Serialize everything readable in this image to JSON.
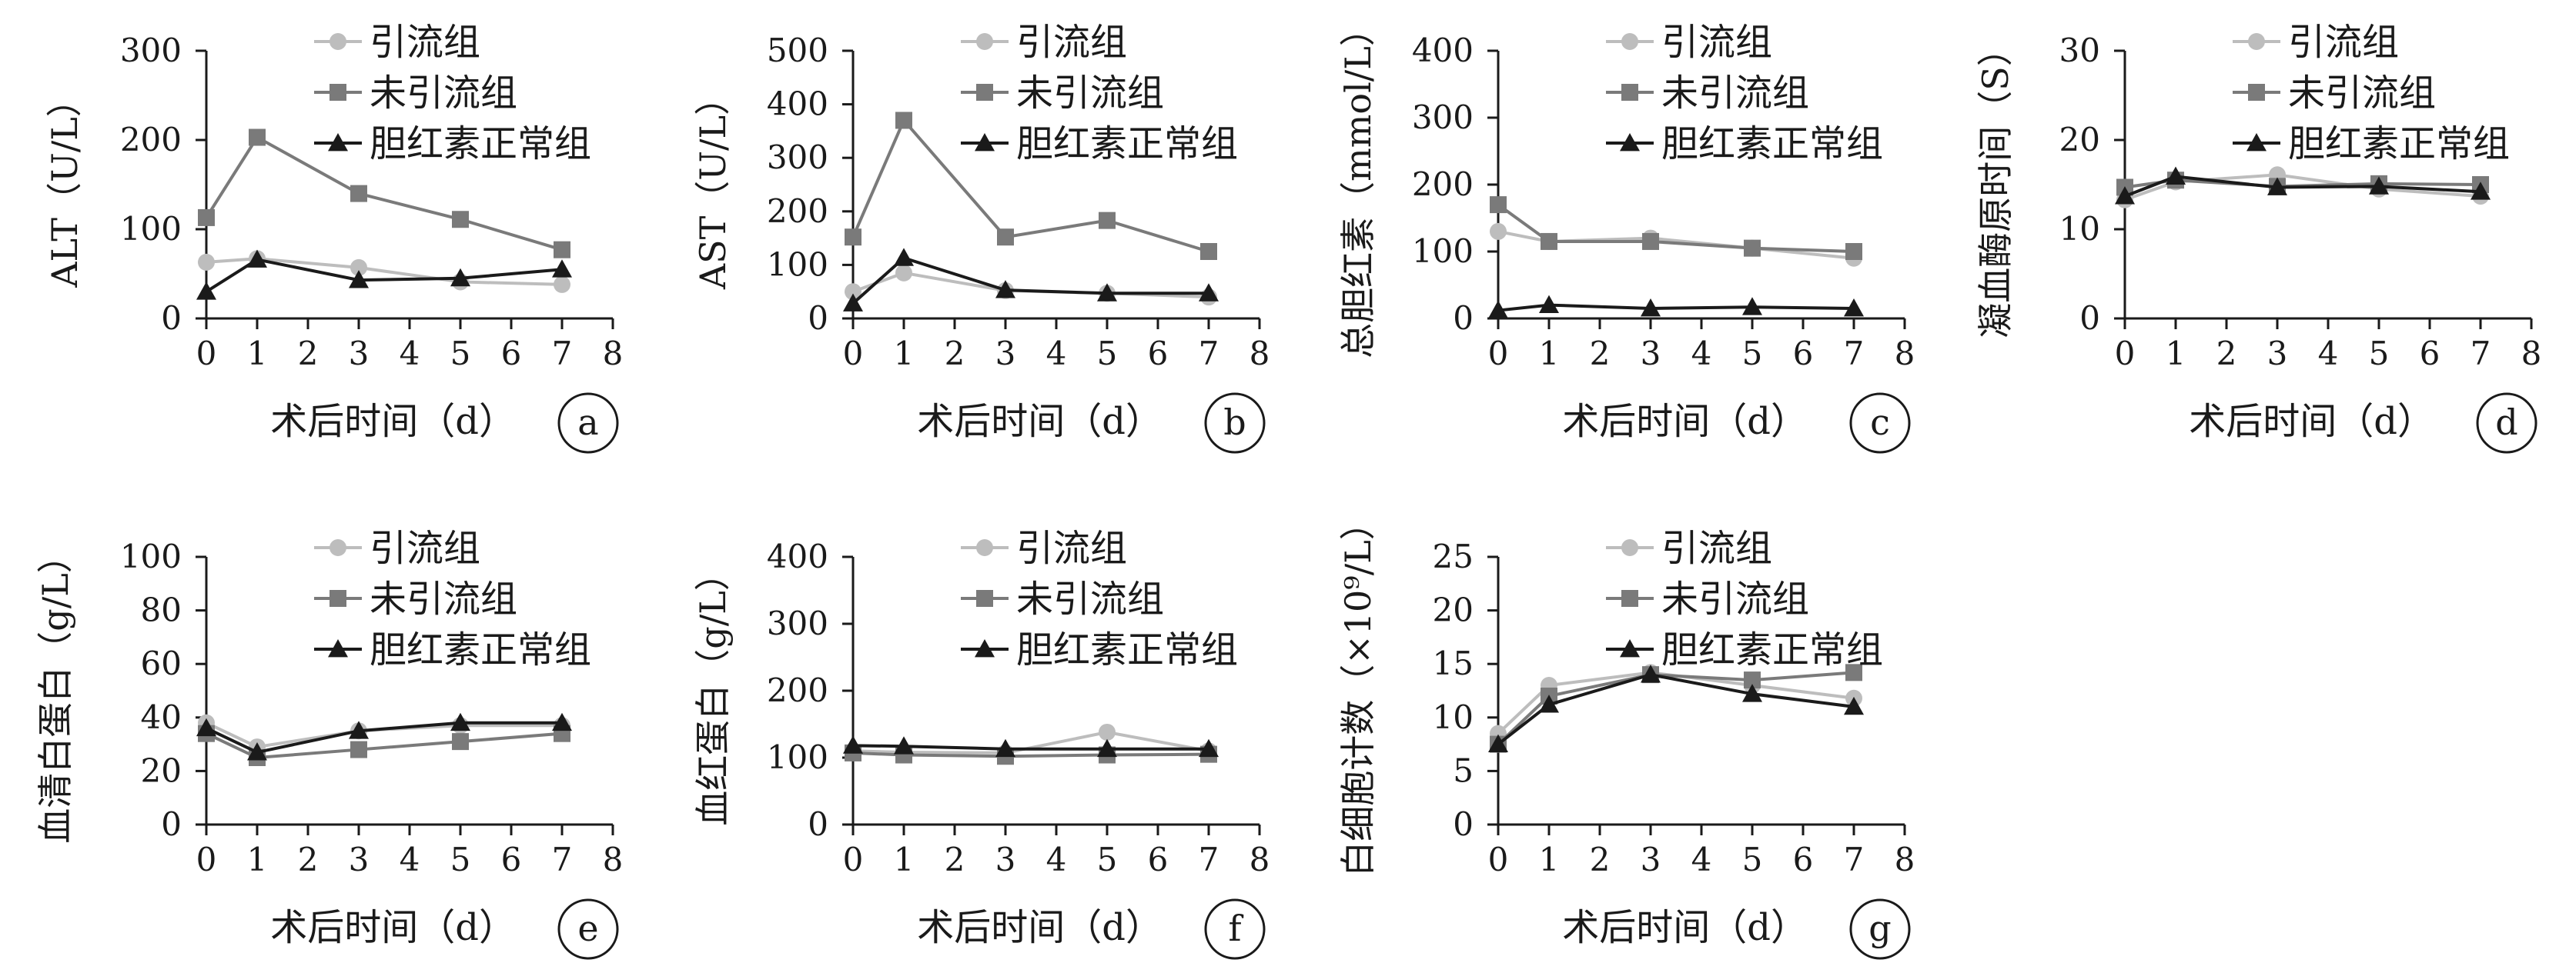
{
  "colors": {
    "axis": "#1a1a1a",
    "drain": "#bdbdbd",
    "undrained": "#7a7a7a",
    "normal": "#1a1a1a"
  },
  "legend": [
    "引流组",
    "未引流组",
    "胆红素正常组"
  ],
  "xlabel": "术后时间（d）",
  "chart_data": [
    {
      "type": "line",
      "panel": "a",
      "ylabel": "ALT（U/L）",
      "xlim": [
        0,
        8
      ],
      "xticks": [
        0,
        1,
        2,
        3,
        4,
        5,
        6,
        7,
        8
      ],
      "ylim": [
        0,
        300
      ],
      "yticks": [
        0,
        100,
        200,
        300
      ],
      "x": [
        0,
        1,
        3,
        5,
        7
      ],
      "series": [
        {
          "name": "引流组",
          "values": [
            63,
            67,
            57,
            41,
            38
          ]
        },
        {
          "name": "未引流组",
          "values": [
            113,
            203,
            140,
            111,
            77
          ]
        },
        {
          "name": "胆红素正常组",
          "values": [
            30,
            66,
            43,
            45,
            55
          ]
        }
      ]
    },
    {
      "type": "line",
      "panel": "b",
      "ylabel": "AST（U/L）",
      "xlim": [
        0,
        8
      ],
      "xticks": [
        0,
        1,
        2,
        3,
        4,
        5,
        6,
        7,
        8
      ],
      "ylim": [
        0,
        500
      ],
      "yticks": [
        0,
        100,
        200,
        300,
        400,
        500
      ],
      "x": [
        0,
        1,
        3,
        5,
        7
      ],
      "series": [
        {
          "name": "引流组",
          "values": [
            50,
            85,
            52,
            47,
            40
          ]
        },
        {
          "name": "未引流组",
          "values": [
            152,
            370,
            152,
            183,
            125
          ]
        },
        {
          "name": "胆红素正常组",
          "values": [
            28,
            113,
            53,
            47,
            47
          ]
        }
      ]
    },
    {
      "type": "line",
      "panel": "c",
      "ylabel": "总胆红素（mmol/L）",
      "xlim": [
        0,
        8
      ],
      "xticks": [
        0,
        1,
        2,
        3,
        4,
        5,
        6,
        7,
        8
      ],
      "ylim": [
        0,
        400
      ],
      "yticks": [
        0,
        100,
        200,
        300,
        400
      ],
      "x": [
        0,
        1,
        3,
        5,
        7
      ],
      "series": [
        {
          "name": "引流组",
          "values": [
            130,
            115,
            120,
            105,
            90
          ]
        },
        {
          "name": "未引流组",
          "values": [
            170,
            115,
            115,
            105,
            100
          ]
        },
        {
          "name": "胆红素正常组",
          "values": [
            12,
            20,
            15,
            17,
            15
          ]
        }
      ]
    },
    {
      "type": "line",
      "panel": "d",
      "ylabel": "凝血酶原时间（S）",
      "xlim": [
        0,
        8
      ],
      "xticks": [
        0,
        1,
        2,
        3,
        4,
        5,
        6,
        7,
        8
      ],
      "ylim": [
        0,
        30
      ],
      "yticks": [
        0,
        10,
        20,
        30
      ],
      "x": [
        0,
        1,
        3,
        5,
        7
      ],
      "series": [
        {
          "name": "引流组",
          "values": [
            13.3,
            15.3,
            16.1,
            14.5,
            13.7
          ]
        },
        {
          "name": "未引流组",
          "values": [
            14.7,
            15.5,
            14.8,
            15.1,
            15.0
          ]
        },
        {
          "name": "胆红素正常组",
          "values": [
            13.7,
            15.9,
            14.7,
            14.8,
            14.2
          ]
        }
      ]
    },
    {
      "type": "line",
      "panel": "e",
      "ylabel": "血清白蛋白（g/L）",
      "xlim": [
        0,
        8
      ],
      "xticks": [
        0,
        1,
        2,
        3,
        4,
        5,
        6,
        7,
        8
      ],
      "ylim": [
        0,
        100
      ],
      "yticks": [
        0,
        20,
        40,
        60,
        80,
        100
      ],
      "x": [
        0,
        1,
        3,
        5,
        7
      ],
      "series": [
        {
          "name": "引流组",
          "values": [
            38,
            29,
            35,
            37,
            37
          ]
        },
        {
          "name": "未引流组",
          "values": [
            34,
            25,
            28,
            31,
            34
          ]
        },
        {
          "name": "胆红素正常组",
          "values": [
            36,
            27,
            35,
            38,
            38
          ]
        }
      ]
    },
    {
      "type": "line",
      "panel": "f",
      "ylabel": "血红蛋白（g/L）",
      "xlim": [
        0,
        8
      ],
      "xticks": [
        0,
        1,
        2,
        3,
        4,
        5,
        6,
        7,
        8
      ],
      "ylim": [
        0,
        400
      ],
      "yticks": [
        0,
        100,
        200,
        300,
        400
      ],
      "x": [
        0,
        1,
        3,
        5,
        7
      ],
      "series": [
        {
          "name": "引流组",
          "values": [
            110,
            108,
            107,
            138,
            110
          ]
        },
        {
          "name": "未引流组",
          "values": [
            107,
            104,
            102,
            104,
            105
          ]
        },
        {
          "name": "胆红素正常组",
          "values": [
            118,
            117,
            113,
            113,
            113
          ]
        }
      ]
    },
    {
      "type": "line",
      "panel": "g",
      "ylabel": "白细胞计数（×10⁹/L）",
      "xlim": [
        0,
        8
      ],
      "xticks": [
        0,
        1,
        2,
        3,
        4,
        5,
        6,
        7,
        8
      ],
      "ylim": [
        0,
        25
      ],
      "yticks": [
        0,
        5,
        10,
        15,
        20,
        25
      ],
      "x": [
        0,
        1,
        3,
        5,
        7
      ],
      "series": [
        {
          "name": "引流组",
          "values": [
            8.5,
            13.0,
            14.2,
            13.0,
            11.8
          ]
        },
        {
          "name": "未引流组",
          "values": [
            7.5,
            12.0,
            14.0,
            13.5,
            14.2
          ]
        },
        {
          "name": "胆红素正常组",
          "values": [
            7.5,
            11.2,
            14.0,
            12.2,
            11.0
          ]
        }
      ]
    }
  ]
}
